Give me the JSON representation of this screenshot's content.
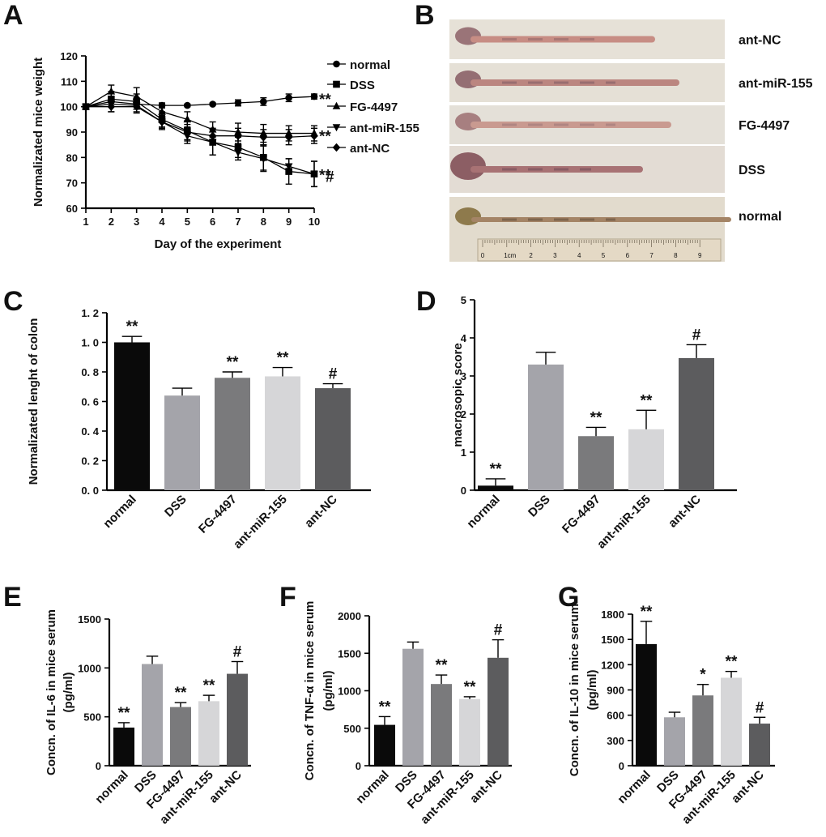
{
  "panels": {
    "A": {
      "letter": "A"
    },
    "B": {
      "letter": "B"
    },
    "C": {
      "letter": "C"
    },
    "D": {
      "letter": "D"
    },
    "E": {
      "letter": "E"
    },
    "F": {
      "letter": "F"
    },
    "G": {
      "letter": "G"
    }
  },
  "colors": {
    "normal": "#0a0a0a",
    "DSS": "#a4a4aa",
    "FG-4497": "#7a7a7c",
    "ant-miR-155": "#d6d6d8",
    "ant-NC": "#5c5c5e"
  },
  "photo": {
    "labels": [
      "ant-NC",
      "ant-miR-155",
      "FG-4497",
      "DSS",
      "normal"
    ],
    "ruler_labels": [
      "0",
      "1cm",
      "2",
      "3",
      "4",
      "5",
      "6",
      "7",
      "8",
      "9"
    ]
  },
  "chart_data": [
    {
      "id": "A",
      "type": "line",
      "title": "",
      "xlabel": "Day of  the experiment",
      "ylabel": "Normalizated mice weight",
      "x": [
        1,
        2,
        3,
        4,
        5,
        6,
        7,
        8,
        9,
        10
      ],
      "xlim": [
        1,
        10
      ],
      "ylim": [
        60,
        120
      ],
      "yticks": [
        60,
        70,
        80,
        90,
        100,
        110,
        120
      ],
      "series": [
        {
          "name": "normal",
          "marker": "circle",
          "values": [
            100,
            102,
            101,
            100.5,
            100.5,
            101,
            101.5,
            102,
            103.5,
            104
          ],
          "errors": [
            1,
            2,
            2,
            1,
            0.5,
            0.5,
            1.2,
            1.5,
            1.5,
            1
          ],
          "end_label": "**"
        },
        {
          "name": "DSS",
          "marker": "square",
          "values": [
            100,
            103,
            102,
            95,
            90.5,
            86,
            84,
            80,
            74.5,
            73.5
          ],
          "errors": [
            1,
            3,
            3,
            3,
            4,
            5,
            4,
            5,
            5,
            5
          ],
          "end_label": "#"
        },
        {
          "name": "FG-4497",
          "marker": "triangle",
          "values": [
            100,
            106,
            104,
            98,
            95,
            91,
            90,
            89.5,
            89.5,
            89.5
          ],
          "errors": [
            1,
            2.5,
            3.5,
            3,
            3,
            3,
            3.5,
            3.5,
            3,
            3
          ],
          "end_label": "**"
        },
        {
          "name": "ant-miR-155",
          "marker": "triangle-down",
          "values": [
            100,
            101,
            100.5,
            94,
            88.5,
            86,
            82,
            79.5,
            76.5,
            73.5
          ],
          "errors": [
            1,
            3,
            3,
            2.5,
            3,
            5,
            3,
            5,
            3,
            5
          ],
          "end_label": "**"
        },
        {
          "name": "ant-NC",
          "marker": "diamond",
          "values": [
            100,
            100,
            100,
            94,
            90,
            88.5,
            88.5,
            88,
            88,
            88.5
          ],
          "errors": [
            1,
            2,
            2,
            3,
            3,
            3,
            3,
            3,
            3,
            3
          ],
          "end_label": ""
        }
      ]
    },
    {
      "id": "C",
      "type": "bar",
      "ylabel": "Normalizated lenght of colon",
      "categories": [
        "normal",
        "DSS",
        "FG-4497",
        "ant-miR-155",
        "ant-NC"
      ],
      "values": [
        1.0,
        0.64,
        0.76,
        0.77,
        0.69
      ],
      "errors": [
        0.04,
        0.05,
        0.04,
        0.06,
        0.03
      ],
      "significance": [
        "**",
        "",
        "**",
        "**",
        "#"
      ],
      "ylim": [
        0,
        1.2
      ],
      "ytick_labels": [
        "0. 0",
        "0. 2",
        "0. 4",
        "0. 6",
        "0. 8",
        "1. 0",
        "1. 2"
      ]
    },
    {
      "id": "D",
      "type": "bar",
      "ylabel": "macrosopic score",
      "categories": [
        "normal",
        "DSS",
        "FG-4497",
        "ant-miR-155",
        "ant-NC"
      ],
      "values": [
        0.12,
        3.3,
        1.42,
        1.6,
        3.47
      ],
      "errors": [
        0.18,
        0.32,
        0.23,
        0.5,
        0.35
      ],
      "significance": [
        "**",
        "",
        "**",
        "**",
        "#"
      ],
      "ylim": [
        0,
        5
      ],
      "ytick_labels": [
        "0",
        "1",
        "2",
        "3",
        "4",
        "5"
      ]
    },
    {
      "id": "E",
      "type": "bar",
      "ylabel": "Concn. of IL-6 in mice serum",
      "ylabel2": "(pg/ml)",
      "categories": [
        "normal",
        "DSS",
        "FG-4497",
        "ant-miR-155",
        "ant-NC"
      ],
      "values": [
        390,
        1040,
        600,
        660,
        940
      ],
      "errors": [
        50,
        80,
        45,
        60,
        125
      ],
      "significance": [
        "**",
        "",
        "**",
        "**",
        "#"
      ],
      "ylim": [
        0,
        1500
      ],
      "ytick_labels": [
        "0",
        "500",
        "1000",
        "1500"
      ]
    },
    {
      "id": "F",
      "type": "bar",
      "ylabel": "Concn. of TNF-α in mice serum",
      "ylabel2": "(pg/ml)",
      "categories": [
        "normal",
        "DSS",
        "FG-4497",
        "ant-miR-155",
        "ant-NC"
      ],
      "values": [
        545,
        1560,
        1090,
        890,
        1440
      ],
      "errors": [
        110,
        90,
        120,
        30,
        240
      ],
      "significance": [
        "**",
        "",
        "**",
        "**",
        "#"
      ],
      "ylim": [
        0,
        2000
      ],
      "ytick_labels": [
        "0",
        "500",
        "1000",
        "1500",
        "2000"
      ]
    },
    {
      "id": "G",
      "type": "bar",
      "ylabel": "Concn. of IL-10 in mice serum",
      "ylabel2": "(pg/ml)",
      "categories": [
        "normal",
        "DSS",
        "FG-4497",
        "ant-miR-155",
        "ant-NC"
      ],
      "values": [
        1445,
        575,
        835,
        1045,
        500
      ],
      "errors": [
        270,
        60,
        130,
        75,
        75
      ],
      "significance": [
        "**",
        "",
        "*",
        "**",
        "#"
      ],
      "ylim": [
        0,
        1800
      ],
      "ytick_labels": [
        "0",
        "300",
        "600",
        "900",
        "1200",
        "1500",
        "1800"
      ]
    }
  ]
}
